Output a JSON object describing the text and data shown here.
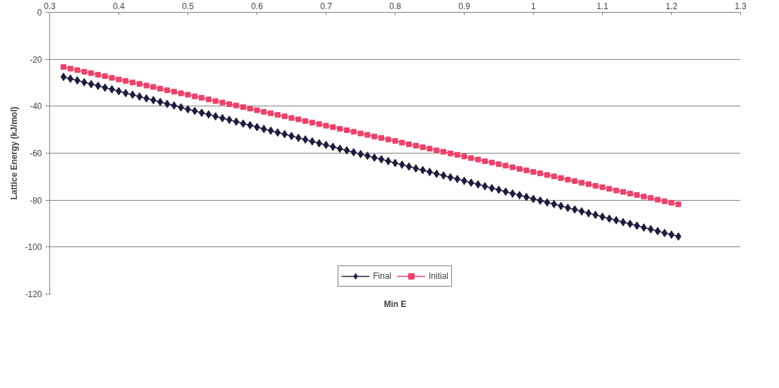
{
  "chart_data": {
    "type": "line",
    "xlabel": "Min E",
    "ylabel": "Lattice Energy (kJ/mol)",
    "x": [
      0.32,
      0.33,
      0.34,
      0.35,
      0.36,
      0.37,
      0.38,
      0.39,
      0.4,
      0.41,
      0.42,
      0.43,
      0.44,
      0.45,
      0.46,
      0.47,
      0.48,
      0.49,
      0.5,
      0.51,
      0.52,
      0.53,
      0.54,
      0.55,
      0.56,
      0.57,
      0.58,
      0.59,
      0.6,
      0.61,
      0.62,
      0.63,
      0.64,
      0.65,
      0.66,
      0.67,
      0.68,
      0.69,
      0.7,
      0.71,
      0.72,
      0.73,
      0.74,
      0.75,
      0.76,
      0.77,
      0.78,
      0.79,
      0.8,
      0.81,
      0.82,
      0.83,
      0.84,
      0.85,
      0.86,
      0.87,
      0.88,
      0.89,
      0.9,
      0.91,
      0.92,
      0.93,
      0.94,
      0.95,
      0.96,
      0.97,
      0.98,
      0.99,
      1.0,
      1.01,
      1.02,
      1.03,
      1.04,
      1.05,
      1.06,
      1.07,
      1.08,
      1.09,
      1.1,
      1.11,
      1.12,
      1.13,
      1.14,
      1.15,
      1.16,
      1.17,
      1.18,
      1.19,
      1.2,
      1.21
    ],
    "series": [
      {
        "name": "Final",
        "color": "#1c1c3c",
        "marker": "diamond",
        "values": [
          -27.5,
          -28.3,
          -29.0,
          -29.8,
          -30.6,
          -31.3,
          -32.1,
          -32.8,
          -33.6,
          -34.4,
          -35.1,
          -35.9,
          -36.7,
          -37.4,
          -38.2,
          -39.0,
          -39.7,
          -40.5,
          -41.3,
          -42.0,
          -42.8,
          -43.5,
          -44.3,
          -45.1,
          -45.8,
          -46.6,
          -47.4,
          -48.1,
          -48.9,
          -49.7,
          -50.4,
          -51.2,
          -51.9,
          -52.7,
          -53.5,
          -54.2,
          -55.0,
          -55.8,
          -56.5,
          -57.3,
          -58.1,
          -58.8,
          -59.6,
          -60.4,
          -61.1,
          -61.9,
          -62.6,
          -63.4,
          -64.2,
          -64.9,
          -65.7,
          -66.5,
          -67.2,
          -68.0,
          -68.8,
          -69.5,
          -70.3,
          -71.0,
          -71.8,
          -72.6,
          -73.3,
          -74.1,
          -74.9,
          -75.6,
          -76.4,
          -77.2,
          -77.9,
          -78.7,
          -79.5,
          -80.2,
          -81.0,
          -81.7,
          -82.5,
          -83.3,
          -84.0,
          -84.8,
          -85.6,
          -86.3,
          -87.1,
          -87.9,
          -88.6,
          -89.4,
          -90.1,
          -90.9,
          -91.7,
          -92.4,
          -93.2,
          -94.0,
          -94.7,
          -95.5
        ]
      },
      {
        "name": "Initial",
        "color": "#f0406a",
        "marker": "square",
        "values": [
          -23.3,
          -24.0,
          -24.6,
          -25.3,
          -25.9,
          -26.6,
          -27.2,
          -27.9,
          -28.6,
          -29.2,
          -29.9,
          -30.5,
          -31.2,
          -31.8,
          -32.5,
          -33.2,
          -33.8,
          -34.5,
          -35.1,
          -35.8,
          -36.4,
          -37.1,
          -37.8,
          -38.4,
          -39.1,
          -39.7,
          -40.4,
          -41.0,
          -41.7,
          -42.4,
          -43.0,
          -43.7,
          -44.3,
          -45.0,
          -45.6,
          -46.3,
          -47.0,
          -47.6,
          -48.3,
          -48.9,
          -49.6,
          -50.2,
          -50.9,
          -51.6,
          -52.2,
          -52.9,
          -53.5,
          -54.2,
          -54.8,
          -55.5,
          -56.2,
          -56.8,
          -57.5,
          -58.1,
          -58.8,
          -59.4,
          -60.1,
          -60.7,
          -61.4,
          -62.1,
          -62.7,
          -63.4,
          -64.0,
          -64.7,
          -65.3,
          -66.0,
          -66.7,
          -67.3,
          -68.0,
          -68.6,
          -69.3,
          -69.9,
          -70.6,
          -71.3,
          -71.9,
          -72.6,
          -73.2,
          -73.9,
          -74.5,
          -75.2,
          -75.9,
          -76.5,
          -77.2,
          -77.8,
          -78.5,
          -79.1,
          -79.8,
          -80.5,
          -81.1,
          -81.8
        ]
      }
    ],
    "xlim": [
      0.3,
      1.3
    ],
    "xticks": [
      0.3,
      0.4,
      0.5,
      0.6,
      0.7,
      0.8,
      0.9,
      1,
      1.1,
      1.2,
      1.3
    ],
    "ylim": [
      -120,
      0
    ],
    "yticks": [
      -120,
      -100,
      -80,
      -60,
      -40,
      -20,
      0
    ],
    "grid": "y",
    "legend": "bottom",
    "line_style": "solid"
  }
}
